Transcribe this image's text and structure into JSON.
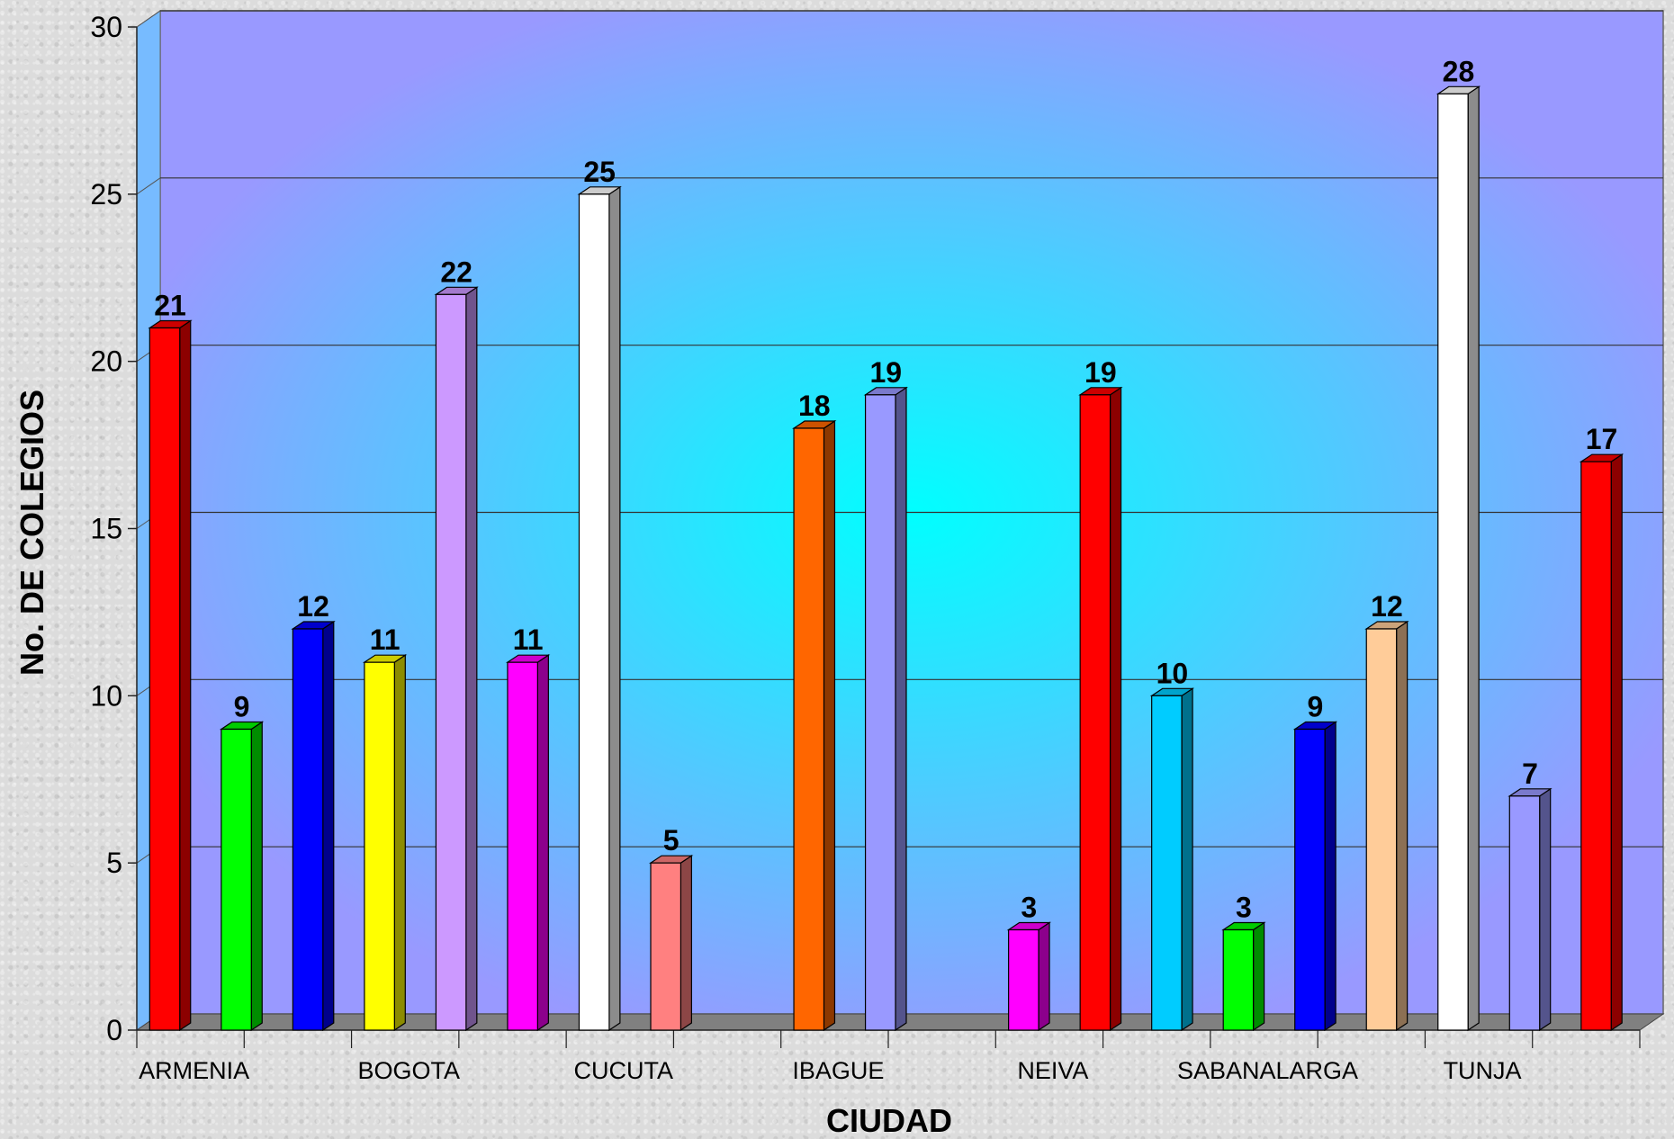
{
  "chart_data": {
    "type": "bar",
    "style": "3d-column",
    "xlabel": "CIUDAD",
    "ylabel": "No. DE COLEGIOS",
    "ylim": [
      0,
      30
    ],
    "yticks": [
      0,
      5,
      10,
      15,
      20,
      25,
      30
    ],
    "grid": true,
    "category_labels": [
      "ARMENIA",
      "BOGOTA",
      "CUCUTA",
      "IBAGUE",
      "NEIVA",
      "SABANALARGA",
      "TUNJA"
    ],
    "bars": [
      {
        "value": 21,
        "color": "#ff0000"
      },
      {
        "value": 9,
        "color": "#00ff00"
      },
      {
        "value": 12,
        "color": "#0000ff"
      },
      {
        "value": 11,
        "color": "#ffff00"
      },
      {
        "value": 22,
        "color": "#cc99ff"
      },
      {
        "value": 11,
        "color": "#ff00ff"
      },
      {
        "value": 25,
        "color": "#ffffff"
      },
      {
        "value": 5,
        "color": "#ff8080"
      },
      {
        "value": null,
        "color": "#ffffff"
      },
      {
        "value": 18,
        "color": "#ff6600"
      },
      {
        "value": 19,
        "color": "#9999ff"
      },
      {
        "value": null,
        "color": "#ffffff"
      },
      {
        "value": 3,
        "color": "#ff00ff"
      },
      {
        "value": 19,
        "color": "#ff0000"
      },
      {
        "value": 10,
        "color": "#00ccff"
      },
      {
        "value": 3,
        "color": "#00ff00"
      },
      {
        "value": 9,
        "color": "#0000ff"
      },
      {
        "value": 12,
        "color": "#ffcc99"
      },
      {
        "value": 28,
        "color": "#ffffff"
      },
      {
        "value": 7,
        "color": "#9999ff"
      },
      {
        "value": 17,
        "color": "#ff0000"
      }
    ],
    "colors": {
      "plot_edge": "#9999ff",
      "plot_center": "#00ffff",
      "floor": "#808080"
    }
  }
}
